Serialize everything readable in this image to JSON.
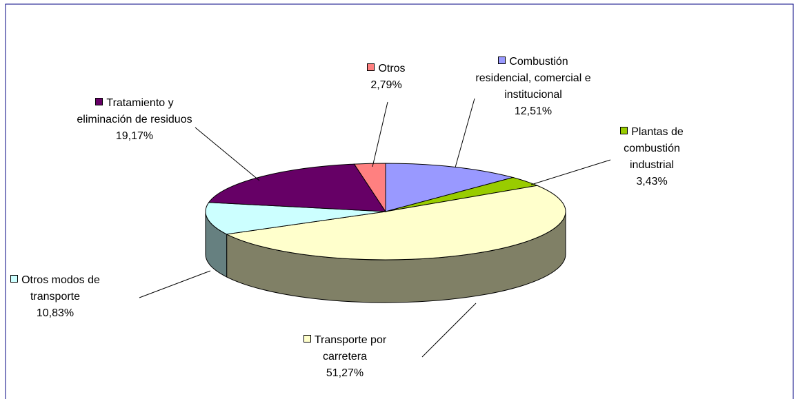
{
  "chart_data": {
    "type": "pie",
    "categories": [
      "Combustión residencial, comercial e institucional",
      "Plantas de combustión industrial",
      "Transporte por carretera",
      "Otros modos de transporte",
      "Tratamiento y eliminación de residuos",
      "Otros"
    ],
    "values": [
      12.51,
      3.43,
      51.27,
      10.83,
      19.17,
      2.79
    ],
    "value_labels": [
      "12,51%",
      "3,43%",
      "51,27%",
      "10,83%",
      "19,17%",
      "2,79%"
    ],
    "colors": [
      "#9999ff",
      "#99cc00",
      "#ffffcc",
      "#ccffff",
      "#660066",
      "#ff8080"
    ]
  }
}
